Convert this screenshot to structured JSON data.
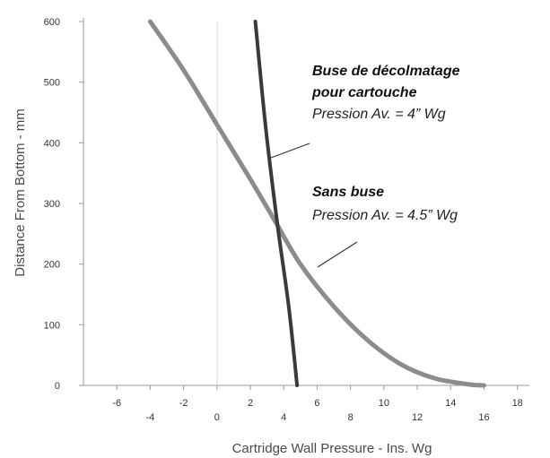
{
  "chart_data": {
    "type": "line",
    "xlabel": "Cartridge Wall Pressure - Ins. Wg",
    "ylabel": "Distance From Bottom - mm",
    "xlim": [
      -8.0,
      18.5
    ],
    "ylim": [
      0,
      600
    ],
    "x_ticks_upper": [
      "-6",
      "-2",
      "2",
      "6",
      "10",
      "14",
      "18"
    ],
    "x_ticks_lower": [
      "-4",
      "0",
      "4",
      "8",
      "12",
      "16"
    ],
    "y_ticks": [
      "600",
      "500",
      "400",
      "300",
      "200",
      "100",
      "0"
    ],
    "grid": false,
    "series": [
      {
        "name": "Sans buse",
        "color": "#8c8c8c",
        "points": [
          [
            -4.0,
            600
          ],
          [
            -2.0,
            520
          ],
          [
            0.0,
            430
          ],
          [
            2.0,
            340
          ],
          [
            3.5,
            270
          ],
          [
            5.0,
            200
          ],
          [
            7.0,
            130
          ],
          [
            9.0,
            75
          ],
          [
            11.0,
            35
          ],
          [
            13.0,
            12
          ],
          [
            15.0,
            2
          ],
          [
            16.0,
            0
          ]
        ]
      },
      {
        "name": "Buse de décolmatage pour cartouche",
        "color": "#3a3a3a",
        "points": [
          [
            2.3,
            600
          ],
          [
            2.9,
            430
          ],
          [
            3.6,
            270
          ],
          [
            4.3,
            130
          ],
          [
            4.8,
            0
          ]
        ]
      }
    ],
    "annotations": [
      {
        "title": "Buse de décolmatage",
        "title2": "pour cartouche",
        "subtitle": "Pression Av. = 4” Wg"
      },
      {
        "title": "Sans buse",
        "subtitle": "Pression Av. = 4.5” Wg"
      }
    ]
  }
}
